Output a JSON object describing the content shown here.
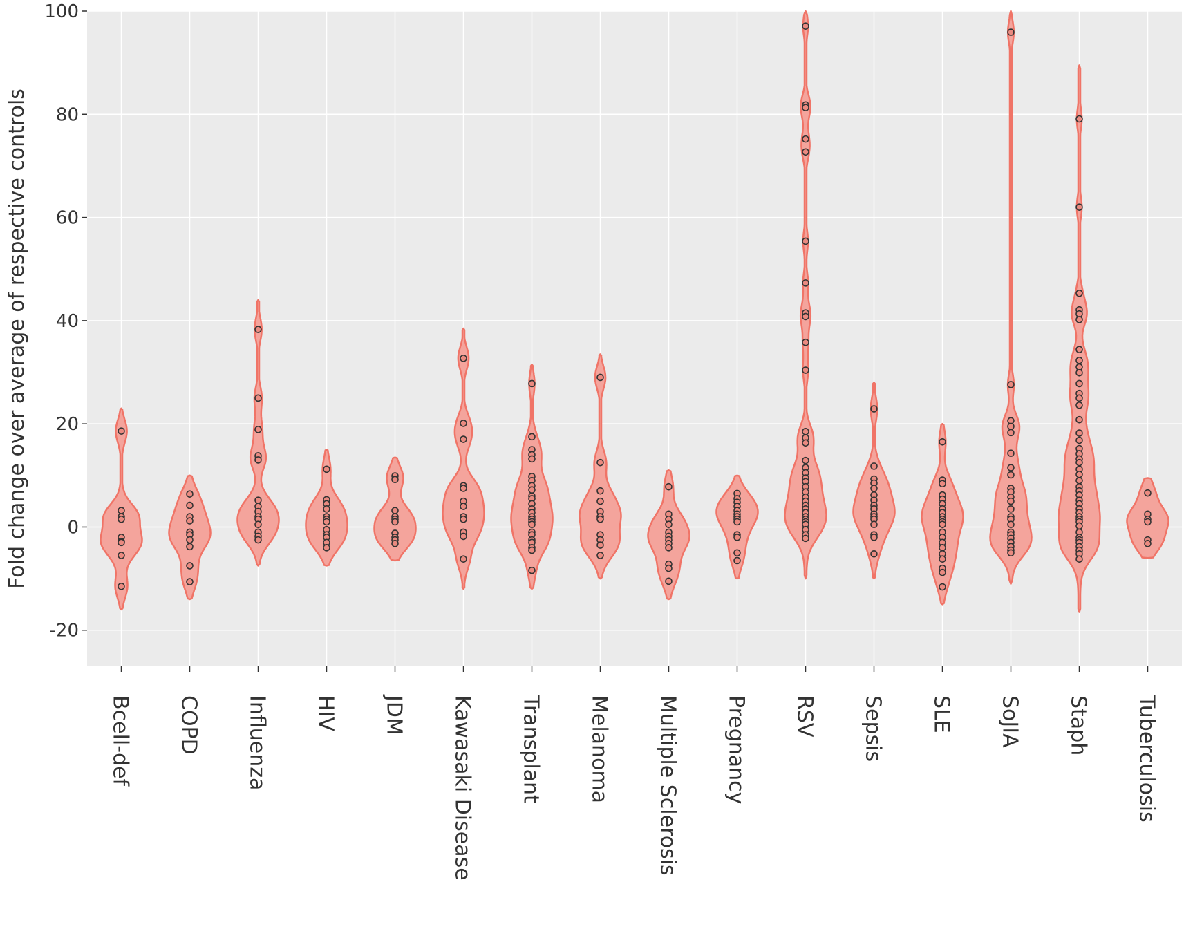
{
  "chart_data": {
    "type": "violin",
    "title": "",
    "xlabel": "",
    "ylabel": "Fold change over average of respective controls",
    "ylim": [
      -27,
      100
    ],
    "yticks": [
      -20,
      0,
      20,
      40,
      60,
      80,
      100
    ],
    "grid": true,
    "legend": "none",
    "colors": {
      "panel": "#ebebeb",
      "grid": "#ffffff",
      "violin_fill": "#f4a49c",
      "violin_stroke": "#f07467",
      "point_fill": "#ea8a80",
      "point_stroke": "#333333"
    },
    "categories": [
      "Bcell-def",
      "COPD",
      "Influenza",
      "HIV",
      "JDM",
      "Kawasaki Disease",
      "Transplant",
      "Melanoma",
      "Multiple Sclerosis",
      "Pregnancy",
      "RSV",
      "Sepsis",
      "SLE",
      "SoJIA",
      "Staph",
      "Tuberculosis"
    ],
    "groups": [
      {
        "name": "Bcell-def",
        "range": [
          -16,
          23
        ],
        "mode": -2,
        "points": [
          18.6,
          3.2,
          2.0,
          1.5,
          -2.0,
          -2.8,
          -3.0,
          -5.5,
          -11.5
        ]
      },
      {
        "name": "COPD",
        "range": [
          -14,
          10
        ],
        "mode": 0,
        "points": [
          6.4,
          4.2,
          2.0,
          1.2,
          -1.0,
          -1.5,
          -2.5,
          -3.8,
          -7.5,
          -10.6
        ]
      },
      {
        "name": "Influenza",
        "range": [
          -7.5,
          44
        ],
        "mode": 1,
        "points": [
          38.3,
          25.0,
          18.9,
          13.8,
          13.0,
          5.2,
          4.0,
          3.0,
          2.0,
          1.5,
          0.5,
          -1.0,
          -1.8,
          -2.5
        ]
      },
      {
        "name": "HIV",
        "range": [
          -7.5,
          15
        ],
        "mode": 0,
        "points": [
          11.2,
          5.3,
          4.5,
          3.5,
          2.0,
          1.5,
          1.0,
          -0.5,
          -1.5,
          -2.0,
          -3.0,
          -4.0
        ]
      },
      {
        "name": "JDM",
        "range": [
          -6.5,
          13.5
        ],
        "mode": -3,
        "points": [
          9.9,
          9.2,
          3.2,
          2.0,
          1.5,
          1.0,
          -1.2,
          -2.0,
          -2.5,
          -3.2
        ]
      },
      {
        "name": "Kawasaki Disease",
        "range": [
          -12,
          38.5
        ],
        "mode": 4,
        "points": [
          32.7,
          20.1,
          17.0,
          8.0,
          7.5,
          5.0,
          4.0,
          2.0,
          1.5,
          -1.0,
          -1.8,
          -6.2
        ]
      },
      {
        "name": "Transplant",
        "range": [
          -12,
          31.5
        ],
        "mode": 2,
        "points": [
          27.8,
          17.5,
          15.0,
          14.0,
          13.2,
          9.8,
          9.0,
          8.0,
          7.2,
          6.0,
          5.5,
          4.5,
          3.5,
          2.8,
          2.0,
          1.5,
          1.0,
          0.5,
          -1.0,
          -1.5,
          -2.5,
          -3.0,
          -4.0,
          -4.5,
          -8.4
        ]
      },
      {
        "name": "Melanoma",
        "range": [
          -10,
          33.5
        ],
        "mode": 1,
        "points": [
          29.0,
          12.5,
          7.0,
          5.0,
          3.0,
          2.0,
          1.5,
          -1.5,
          -2.5,
          -3.5,
          -5.5
        ]
      },
      {
        "name": "Multiple Sclerosis",
        "range": [
          -14,
          11
        ],
        "mode": -2,
        "points": [
          7.8,
          2.5,
          1.5,
          0.5,
          -1.0,
          -1.8,
          -2.5,
          -3.2,
          -4.0,
          -7.2,
          -8.0,
          -10.5
        ]
      },
      {
        "name": "Pregnancy",
        "range": [
          -10,
          10
        ],
        "mode": 2,
        "points": [
          6.5,
          5.5,
          4.8,
          4.0,
          3.2,
          2.5,
          2.0,
          1.5,
          1.0,
          -1.5,
          -2.0,
          -5.0,
          -6.5
        ]
      },
      {
        "name": "RSV",
        "range": [
          -10,
          100
        ],
        "mode": 3,
        "points": [
          97.1,
          81.8,
          81.3,
          75.2,
          72.7,
          55.4,
          47.3,
          41.5,
          40.8,
          35.8,
          30.4,
          18.5,
          17.3,
          16.3,
          12.9,
          11.5,
          10.5,
          9.5,
          8.8,
          7.8,
          6.8,
          5.8,
          5.0,
          4.2,
          3.5,
          2.8,
          2.0,
          1.5,
          1.0,
          0.5,
          -0.5,
          -1.5,
          -2.2
        ]
      },
      {
        "name": "Sepsis",
        "range": [
          -10,
          28
        ],
        "mode": 2,
        "points": [
          22.9,
          11.8,
          9.3,
          8.5,
          7.5,
          6.2,
          5.2,
          4.2,
          3.5,
          2.5,
          2.0,
          1.5,
          0.5,
          -1.5,
          -2.0,
          -5.2
        ]
      },
      {
        "name": "SLE",
        "range": [
          -15,
          20
        ],
        "mode": 2,
        "points": [
          16.5,
          9.1,
          8.4,
          6.2,
          5.4,
          4.5,
          3.5,
          2.8,
          2.0,
          1.5,
          1.0,
          0.5,
          -1.0,
          -2.0,
          -3.0,
          -4.0,
          -5.2,
          -6.2,
          -8.0,
          -8.8,
          -11.6
        ]
      },
      {
        "name": "SoJIA",
        "range": [
          -11,
          100
        ],
        "mode": -3,
        "points": [
          95.9,
          27.6,
          20.6,
          19.5,
          18.3,
          14.3,
          11.5,
          10.1,
          7.5,
          6.8,
          5.8,
          5.0,
          3.5,
          2.0,
          1.5,
          0.5,
          -1.0,
          -1.5,
          -2.2,
          -3.0,
          -3.8,
          -4.5,
          -5.0
        ]
      },
      {
        "name": "Staph",
        "range": [
          -16.5,
          89.5
        ],
        "mode": 2,
        "points": [
          79.1,
          62.0,
          45.3,
          42.1,
          41.3,
          40.2,
          34.4,
          32.3,
          31.0,
          29.9,
          27.8,
          25.9,
          25.0,
          23.6,
          20.8,
          18.2,
          16.8,
          15.2,
          14.2,
          13.2,
          12.5,
          11.2,
          10.2,
          9.0,
          7.8,
          7.0,
          6.2,
          5.2,
          4.5,
          3.5,
          2.8,
          2.0,
          1.5,
          1.0,
          0.2,
          -1.0,
          -2.0,
          -2.5,
          -3.0,
          -3.8,
          -4.5,
          -5.2,
          -6.2
        ]
      },
      {
        "name": "Tuberculosis",
        "range": [
          -6,
          9.5
        ],
        "mode": -1,
        "points": [
          6.6,
          2.5,
          1.5,
          1.0,
          -2.5,
          -3.2
        ]
      }
    ]
  }
}
